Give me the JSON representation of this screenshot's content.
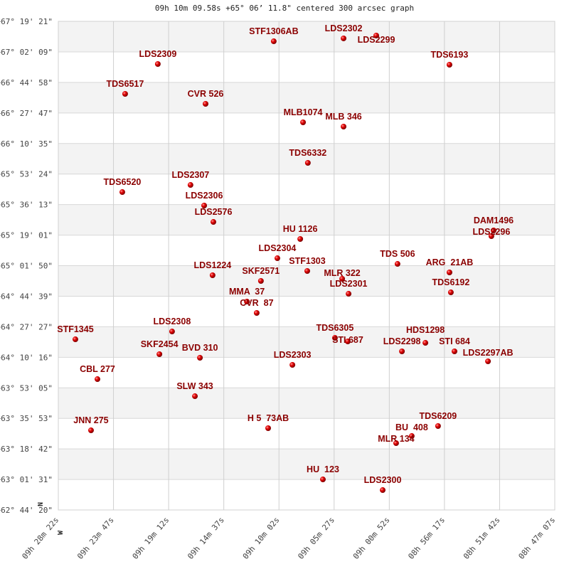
{
  "chart_data": {
    "type": "scatter",
    "title": "09h 10m 09.58s +65° 06’ 11.8\" centered 300 arcsec graph",
    "xlabel": "",
    "ylabel": "",
    "x_axis": "Right Ascension (decreasing to the right)",
    "xlim": [
      "09h 28m 22s",
      "08h 47m 07s"
    ],
    "ylim": [
      "+62° 44' 20\"",
      "+67° 19' 21\""
    ],
    "grid": true,
    "x_ticks": [
      "09h 28m 22s",
      "09h 23m 47s",
      "09h 19m 12s",
      "09h 14m 37s",
      "09h 10m 02s",
      "09h 05m 27s",
      "09h 00m 52s",
      "08h 56m 17s",
      "08h 51m 42s",
      "08h 47m 07s"
    ],
    "y_ticks": [
      "+67° 19' 21\"",
      "+67° 02' 09\"",
      "+66° 44' 58\"",
      "+66° 27' 47\"",
      "+66° 10' 35\"",
      "+65° 53' 24\"",
      "+65° 36' 13\"",
      "+65° 19' 01\"",
      "+65° 01' 50\"",
      "+64° 44' 39\"",
      "+64° 27' 27\"",
      "+64° 10' 16\"",
      "+63° 53' 05\"",
      "+63° 35' 53\"",
      "+63° 18' 42\"",
      "+63° 01' 31\"",
      "+62° 44' 20\""
    ],
    "compass": {
      "north": "N",
      "west": "W"
    },
    "marker_color": "#dd0000",
    "label_color": "#8b0000",
    "points": [
      {
        "name": "STF1306AB",
        "ra": "09h 10m 28s",
        "dec": "+67° 08' 08\""
      },
      {
        "name": "LDS2302",
        "ra": "09h 04m 40s",
        "dec": "+67° 09' 45\""
      },
      {
        "name": "LDS2299",
        "ra": "09h 01m 57s",
        "dec": "+67° 11' 21\""
      },
      {
        "name": "LDS2309",
        "ra": "09h 20m 06s",
        "dec": "+66° 55' 20\""
      },
      {
        "name": "TDS6193",
        "ra": "08h 55m 52s",
        "dec": "+66° 54' 56\""
      },
      {
        "name": "TDS6517",
        "ra": "09h 22m 49s",
        "dec": "+66° 38' 31\""
      },
      {
        "name": "CVR 526",
        "ra": "09h 16m 08s",
        "dec": "+66° 32' 55\""
      },
      {
        "name": "MLB1074",
        "ra": "09h 08m 02s",
        "dec": "+66° 22' 30\""
      },
      {
        "name": "MLB 346",
        "ra": "09h 04m 40s",
        "dec": "+66° 20' 06\""
      },
      {
        "name": "TDS6332",
        "ra": "09h 07m 38s",
        "dec": "+65° 59' 41\""
      },
      {
        "name": "TDS6520",
        "ra": "09h 23m 03s",
        "dec": "+65° 43' 16\""
      },
      {
        "name": "LDS2307",
        "ra": "09h 17m 23s",
        "dec": "+65° 47' 16\""
      },
      {
        "name": "LDS2306",
        "ra": "09h 16m 15s",
        "dec": "+65° 35' 40\""
      },
      {
        "name": "LDS2576",
        "ra": "09h 15m 29s",
        "dec": "+65° 26' 27\""
      },
      {
        "name": "HU 1126",
        "ra": "09h 08m 16s",
        "dec": "+65° 16' 51\""
      },
      {
        "name": "LDS2304",
        "ra": "09h 10m 10s",
        "dec": "+65° 06' 02\""
      },
      {
        "name": "STF1303",
        "ra": "09h 07m 41s",
        "dec": "+64° 58' 50\""
      },
      {
        "name": "SKF2571",
        "ra": "09h 11m 32s",
        "dec": "+64° 53' 14\""
      },
      {
        "name": "LDS1224",
        "ra": "09h 15m 33s",
        "dec": "+64° 56' 26\""
      },
      {
        "name": "MMA  37",
        "ra": "09h 12m 42s",
        "dec": "+64° 41' 38\""
      },
      {
        "name": "CVR  87",
        "ra": "09h 11m 53s",
        "dec": "+64° 35' 13\""
      },
      {
        "name": "MLR 322",
        "ra": "09h 04m 47s",
        "dec": "+64° 54' 26\""
      },
      {
        "name": "LDS2301",
        "ra": "09h 04m 15s",
        "dec": "+64° 46' 01\""
      },
      {
        "name": "TDS 506",
        "ra": "09h 00m 11s",
        "dec": "+65° 02' 50\""
      },
      {
        "name": "ARG  21AB",
        "ra": "08h 55m 52s",
        "dec": "+64° 58' 02\""
      },
      {
        "name": "TDS6192",
        "ra": "08h 55m 45s",
        "dec": "+64° 46' 49\""
      },
      {
        "name": "DAM1496",
        "ra": "08h 52m 12s",
        "dec": "+65° 21' 39\""
      },
      {
        "name": "LDS2296",
        "ra": "08h 52m 23s",
        "dec": "+65° 18' 27\""
      },
      {
        "name": "TDS6305",
        "ra": "09h 05m 23s",
        "dec": "+64° 21' 12\""
      },
      {
        "name": "STI 687",
        "ra": "09h 04m 19s",
        "dec": "+64° 19' 12\""
      },
      {
        "name": "LDS2298",
        "ra": "08h 59m 49s",
        "dec": "+64° 13' 36\""
      },
      {
        "name": "HDS1298",
        "ra": "08h 57m 52s",
        "dec": "+64° 18' 24\""
      },
      {
        "name": "STI 684",
        "ra": "08h 55m 27s",
        "dec": "+64° 13' 36\""
      },
      {
        "name": "LDS2297AB",
        "ra": "08h 52m 40s",
        "dec": "+64° 08' 00\""
      },
      {
        "name": "STF1345",
        "ra": "09h 26m 57s",
        "dec": "+64° 20' 24\""
      },
      {
        "name": "LDS2308",
        "ra": "09h 18m 55s",
        "dec": "+64° 24' 48\""
      },
      {
        "name": "SKF2454",
        "ra": "09h 19m 58s",
        "dec": "+64° 12' 00\""
      },
      {
        "name": "BVD 310",
        "ra": "09h 16m 36s",
        "dec": "+64° 10' 00\""
      },
      {
        "name": "LDS2303",
        "ra": "09h 08m 55s",
        "dec": "+64° 06' 00\""
      },
      {
        "name": "CBL 277",
        "ra": "09h 25m 07s",
        "dec": "+63° 57' 59\""
      },
      {
        "name": "SLW 343",
        "ra": "09h 17m 01s",
        "dec": "+63° 48' 22\""
      },
      {
        "name": "JNN 275",
        "ra": "09h 25m 39s",
        "dec": "+63° 29' 09\""
      },
      {
        "name": "H 5  73AB",
        "ra": "09h 10m 56s",
        "dec": "+63° 30' 22\""
      },
      {
        "name": "TDS6209",
        "ra": "08h 56m 49s",
        "dec": "+63° 31' 34\""
      },
      {
        "name": "BU  408",
        "ra": "08h 59m 00s",
        "dec": "+63° 25' 57\""
      },
      {
        "name": "MLR 134",
        "ra": "09h 00m 18s",
        "dec": "+63° 21' 57\""
      },
      {
        "name": "HU  123",
        "ra": "09h 06m 23s",
        "dec": "+63° 01' 32\""
      },
      {
        "name": "LDS2300",
        "ra": "09h 01m 25s",
        "dec": "+62° 55' 32\""
      }
    ]
  }
}
